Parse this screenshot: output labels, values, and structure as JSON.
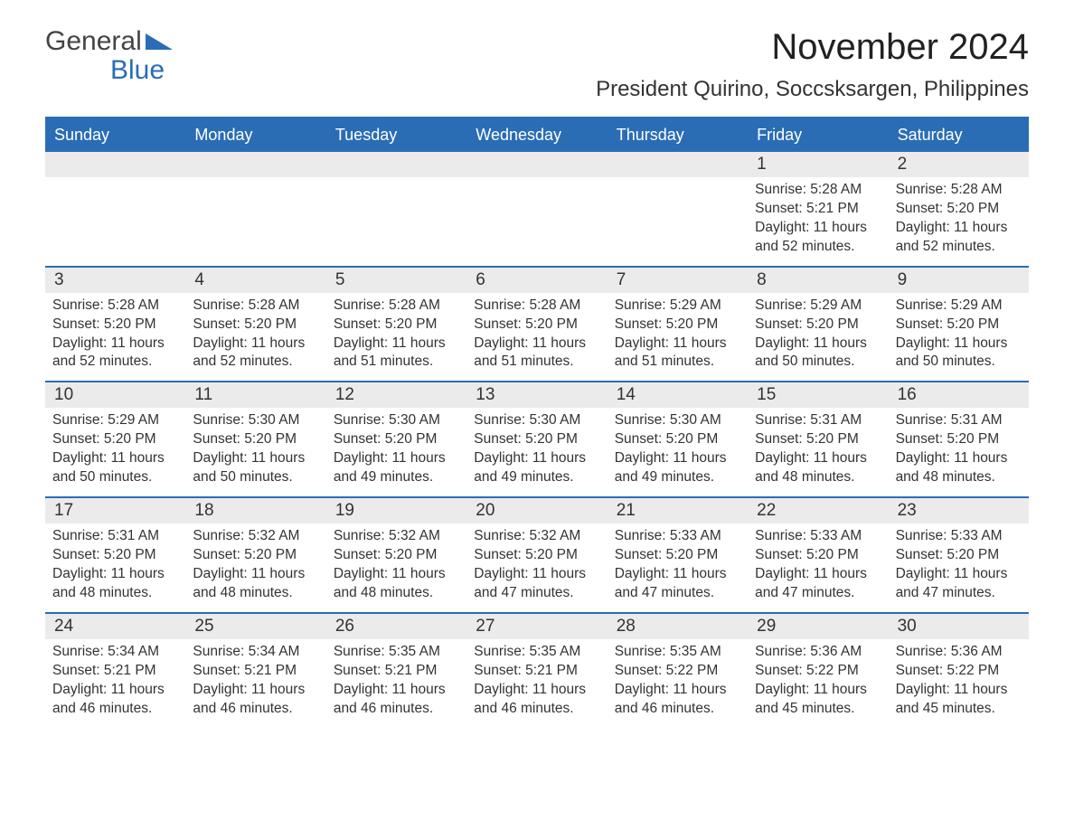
{
  "logo": {
    "word1": "General",
    "word2": "Blue"
  },
  "title": "November 2024",
  "location": "President Quirino, Soccsksargen, Philippines",
  "colors": {
    "brand_blue": "#2a6db4",
    "header_text": "#ffffff",
    "daynum_bg": "#ebebeb",
    "body_text": "#333333",
    "page_bg": "#ffffff"
  },
  "layout": {
    "columns": 7,
    "weeks": 5,
    "weekday_fontsize": 18,
    "daynum_fontsize": 19,
    "body_fontsize": 15.5,
    "title_fontsize": 40,
    "location_fontsize": 24
  },
  "weekdays": [
    "Sunday",
    "Monday",
    "Tuesday",
    "Wednesday",
    "Thursday",
    "Friday",
    "Saturday"
  ],
  "weeks": [
    [
      {
        "empty": true
      },
      {
        "empty": true
      },
      {
        "empty": true
      },
      {
        "empty": true
      },
      {
        "empty": true
      },
      {
        "day": "1",
        "sunrise": "Sunrise: 5:28 AM",
        "sunset": "Sunset: 5:21 PM",
        "daylight1": "Daylight: 11 hours",
        "daylight2": "and 52 minutes."
      },
      {
        "day": "2",
        "sunrise": "Sunrise: 5:28 AM",
        "sunset": "Sunset: 5:20 PM",
        "daylight1": "Daylight: 11 hours",
        "daylight2": "and 52 minutes."
      }
    ],
    [
      {
        "day": "3",
        "sunrise": "Sunrise: 5:28 AM",
        "sunset": "Sunset: 5:20 PM",
        "daylight1": "Daylight: 11 hours",
        "daylight2": "and 52 minutes."
      },
      {
        "day": "4",
        "sunrise": "Sunrise: 5:28 AM",
        "sunset": "Sunset: 5:20 PM",
        "daylight1": "Daylight: 11 hours",
        "daylight2": "and 52 minutes."
      },
      {
        "day": "5",
        "sunrise": "Sunrise: 5:28 AM",
        "sunset": "Sunset: 5:20 PM",
        "daylight1": "Daylight: 11 hours",
        "daylight2": "and 51 minutes."
      },
      {
        "day": "6",
        "sunrise": "Sunrise: 5:28 AM",
        "sunset": "Sunset: 5:20 PM",
        "daylight1": "Daylight: 11 hours",
        "daylight2": "and 51 minutes."
      },
      {
        "day": "7",
        "sunrise": "Sunrise: 5:29 AM",
        "sunset": "Sunset: 5:20 PM",
        "daylight1": "Daylight: 11 hours",
        "daylight2": "and 51 minutes."
      },
      {
        "day": "8",
        "sunrise": "Sunrise: 5:29 AM",
        "sunset": "Sunset: 5:20 PM",
        "daylight1": "Daylight: 11 hours",
        "daylight2": "and 50 minutes."
      },
      {
        "day": "9",
        "sunrise": "Sunrise: 5:29 AM",
        "sunset": "Sunset: 5:20 PM",
        "daylight1": "Daylight: 11 hours",
        "daylight2": "and 50 minutes."
      }
    ],
    [
      {
        "day": "10",
        "sunrise": "Sunrise: 5:29 AM",
        "sunset": "Sunset: 5:20 PM",
        "daylight1": "Daylight: 11 hours",
        "daylight2": "and 50 minutes."
      },
      {
        "day": "11",
        "sunrise": "Sunrise: 5:30 AM",
        "sunset": "Sunset: 5:20 PM",
        "daylight1": "Daylight: 11 hours",
        "daylight2": "and 50 minutes."
      },
      {
        "day": "12",
        "sunrise": "Sunrise: 5:30 AM",
        "sunset": "Sunset: 5:20 PM",
        "daylight1": "Daylight: 11 hours",
        "daylight2": "and 49 minutes."
      },
      {
        "day": "13",
        "sunrise": "Sunrise: 5:30 AM",
        "sunset": "Sunset: 5:20 PM",
        "daylight1": "Daylight: 11 hours",
        "daylight2": "and 49 minutes."
      },
      {
        "day": "14",
        "sunrise": "Sunrise: 5:30 AM",
        "sunset": "Sunset: 5:20 PM",
        "daylight1": "Daylight: 11 hours",
        "daylight2": "and 49 minutes."
      },
      {
        "day": "15",
        "sunrise": "Sunrise: 5:31 AM",
        "sunset": "Sunset: 5:20 PM",
        "daylight1": "Daylight: 11 hours",
        "daylight2": "and 48 minutes."
      },
      {
        "day": "16",
        "sunrise": "Sunrise: 5:31 AM",
        "sunset": "Sunset: 5:20 PM",
        "daylight1": "Daylight: 11 hours",
        "daylight2": "and 48 minutes."
      }
    ],
    [
      {
        "day": "17",
        "sunrise": "Sunrise: 5:31 AM",
        "sunset": "Sunset: 5:20 PM",
        "daylight1": "Daylight: 11 hours",
        "daylight2": "and 48 minutes."
      },
      {
        "day": "18",
        "sunrise": "Sunrise: 5:32 AM",
        "sunset": "Sunset: 5:20 PM",
        "daylight1": "Daylight: 11 hours",
        "daylight2": "and 48 minutes."
      },
      {
        "day": "19",
        "sunrise": "Sunrise: 5:32 AM",
        "sunset": "Sunset: 5:20 PM",
        "daylight1": "Daylight: 11 hours",
        "daylight2": "and 48 minutes."
      },
      {
        "day": "20",
        "sunrise": "Sunrise: 5:32 AM",
        "sunset": "Sunset: 5:20 PM",
        "daylight1": "Daylight: 11 hours",
        "daylight2": "and 47 minutes."
      },
      {
        "day": "21",
        "sunrise": "Sunrise: 5:33 AM",
        "sunset": "Sunset: 5:20 PM",
        "daylight1": "Daylight: 11 hours",
        "daylight2": "and 47 minutes."
      },
      {
        "day": "22",
        "sunrise": "Sunrise: 5:33 AM",
        "sunset": "Sunset: 5:20 PM",
        "daylight1": "Daylight: 11 hours",
        "daylight2": "and 47 minutes."
      },
      {
        "day": "23",
        "sunrise": "Sunrise: 5:33 AM",
        "sunset": "Sunset: 5:20 PM",
        "daylight1": "Daylight: 11 hours",
        "daylight2": "and 47 minutes."
      }
    ],
    [
      {
        "day": "24",
        "sunrise": "Sunrise: 5:34 AM",
        "sunset": "Sunset: 5:21 PM",
        "daylight1": "Daylight: 11 hours",
        "daylight2": "and 46 minutes."
      },
      {
        "day": "25",
        "sunrise": "Sunrise: 5:34 AM",
        "sunset": "Sunset: 5:21 PM",
        "daylight1": "Daylight: 11 hours",
        "daylight2": "and 46 minutes."
      },
      {
        "day": "26",
        "sunrise": "Sunrise: 5:35 AM",
        "sunset": "Sunset: 5:21 PM",
        "daylight1": "Daylight: 11 hours",
        "daylight2": "and 46 minutes."
      },
      {
        "day": "27",
        "sunrise": "Sunrise: 5:35 AM",
        "sunset": "Sunset: 5:21 PM",
        "daylight1": "Daylight: 11 hours",
        "daylight2": "and 46 minutes."
      },
      {
        "day": "28",
        "sunrise": "Sunrise: 5:35 AM",
        "sunset": "Sunset: 5:22 PM",
        "daylight1": "Daylight: 11 hours",
        "daylight2": "and 46 minutes."
      },
      {
        "day": "29",
        "sunrise": "Sunrise: 5:36 AM",
        "sunset": "Sunset: 5:22 PM",
        "daylight1": "Daylight: 11 hours",
        "daylight2": "and 45 minutes."
      },
      {
        "day": "30",
        "sunrise": "Sunrise: 5:36 AM",
        "sunset": "Sunset: 5:22 PM",
        "daylight1": "Daylight: 11 hours",
        "daylight2": "and 45 minutes."
      }
    ]
  ]
}
